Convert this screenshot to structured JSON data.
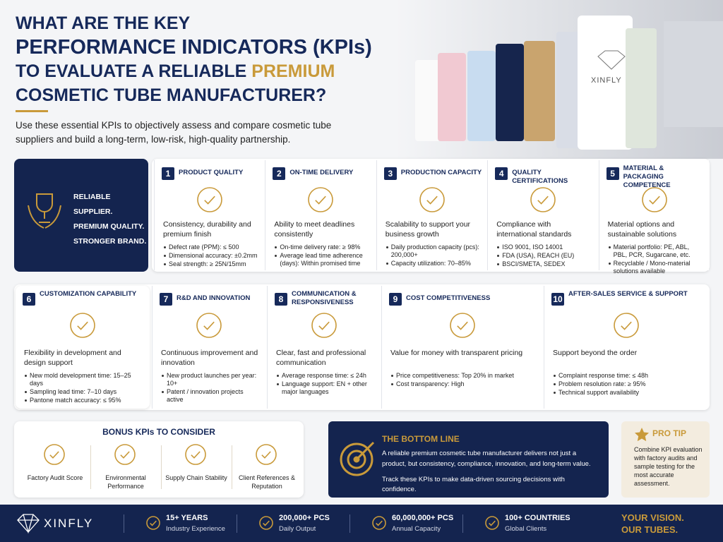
{
  "header": {
    "title": {
      "line1": "WHAT ARE THE KEY",
      "line2": "PERFORMANCE INDICATORS (KPIs)",
      "line3": "TO EVALUATE A RELIABLE",
      "highlight": "PREMIUM",
      "line4": "COSMETIC TUBE MANUFACTURER?"
    },
    "intro": "Use these essential KPIs to objectively assess and compare cosmetic tube suppliers and build a long-term, low-risk, high-quality partnership.",
    "tube_brand": "XINFLY"
  },
  "badge": {
    "lines": [
      "RELIABLE SUPPLIER.",
      "PREMIUM QUALITY.",
      "STRONGER BRAND."
    ]
  },
  "kpis": [
    {
      "number": 1,
      "title": "PRODUCT QUALITY",
      "description": "Consistency, durability and premium finish",
      "bullets": [
        "Defect rate (PPM): ≤ 500",
        "Dimensional accuracy: ±0.2mm",
        "Seal strength: ≥ 25N/15mm"
      ]
    },
    {
      "number": 2,
      "title": "ON-TIME DELIVERY",
      "description": "Ability to meet deadlines consistently",
      "bullets": [
        "On-time delivery rate: ≥ 98%",
        "Average lead time adherence (days): Within promised time"
      ]
    },
    {
      "number": 3,
      "title": "PRODUCTION CAPACITY",
      "description": "Scalability to support your business growth",
      "bullets": [
        "Daily production capacity (pcs): 200,000+",
        "Capacity utilization: 70–85%"
      ]
    },
    {
      "number": 4,
      "title": "QUALITY CERTIFICATIONS",
      "description": "Compliance with international standards",
      "bullets": [
        "ISO 9001, ISO 14001",
        "FDA (USA), REACH (EU)",
        "BSCI/SMETA, SEDEX"
      ]
    },
    {
      "number": 5,
      "title": "MATERIAL & PACKAGING COMPETENCE",
      "description": "Material options and sustainable solutions",
      "bullets": [
        "Material portfolio: PE, ABL, PBL, PCR, Sugarcane, etc.",
        "Recyclable / Mono-material solutions available"
      ]
    },
    {
      "number": 6,
      "title": "CUSTOMIZATION CAPABILITY",
      "description": "Flexibility in development and design support",
      "bullets": [
        "New mold development time: 15–25 days",
        "Sampling lead time: 7–10 days",
        "Pantone match accuracy: ≤ 95%"
      ]
    },
    {
      "number": 7,
      "title": "R&D AND INNOVATION",
      "description": "Continuous improvement and innovation",
      "bullets": [
        "New product launches per year: 10+",
        "Patent / innovation projects active"
      ]
    },
    {
      "number": 8,
      "title": "COMMUNICATION & RESPONSIVENESS",
      "description": "Clear, fast and professional communication",
      "bullets": [
        "Average response time: ≤ 24h",
        "Language support: EN + other major languages"
      ]
    },
    {
      "number": 9,
      "title": "COST COMPETITIVENESS",
      "description": "Value for money with transparent pricing",
      "bullets": [
        "Price competitiveness: Top 20% in market",
        "Cost transparency: High"
      ]
    },
    {
      "number": 10,
      "title": "AFTER-SALES SERVICE & SUPPORT",
      "description": "Support beyond the order",
      "bullets": [
        "Complaint response time: ≤ 48h",
        "Problem resolution rate: ≥ 95%",
        "Technical support availability"
      ]
    }
  ],
  "bonus": {
    "title": "BONUS KPIs TO CONSIDER",
    "items": [
      "Factory Audit Score",
      "Environmental Performance",
      "Supply Chain Stability",
      "Client References & Reputation"
    ]
  },
  "bottom_line": {
    "title": "THE BOTTOM LINE",
    "text": "A reliable premium cosmetic tube manufacturer delivers not just a product, but consistency, compliance, innovation, and long-term value.",
    "action": "Track these KPIs to make data-driven sourcing decisions with confidence."
  },
  "pro_tip": {
    "title": "PRO TIP",
    "text": "Combine KPI evaluation with factory audits and sample testing for the most accurate assessment."
  },
  "footer": {
    "brand": "XINFLY",
    "stats": [
      {
        "value": "15+ YEARS",
        "label": "Industry Experience"
      },
      {
        "value": "200,000+ PCS",
        "label": "Daily Output"
      },
      {
        "value": "60,000,000+ PCS",
        "label": "Annual Capacity"
      },
      {
        "value": "100+ COUNTRIES",
        "label": "Global Clients"
      }
    ],
    "slogan": [
      "YOUR VISION.",
      "OUR TUBES."
    ]
  }
}
